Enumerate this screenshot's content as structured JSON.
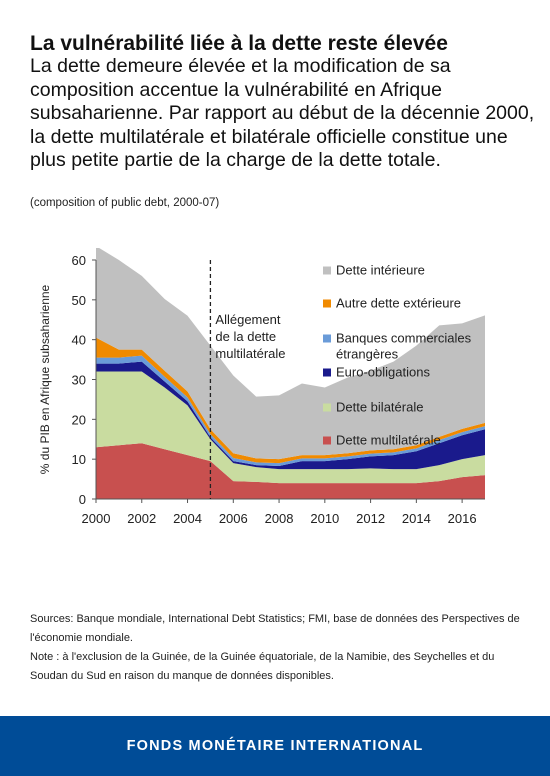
{
  "header": {
    "title": "La vulnérabilité liée à la dette reste élevée",
    "subtitle": "La dette demeure élevée et la modification de sa composition accentue la vulnérabilité en Afrique subsaharienne. Par rapport au début de la décennie 2000, la dette multilatérale et bilatérale officielle constitue une plus petite partie de la charge de la dette totale.",
    "caption": "(composition of public debt, 2000-07)"
  },
  "chart_data": {
    "type": "area",
    "stacked": true,
    "ylabel": "% du PIB en Afrique subsaharienne",
    "xlim": [
      2000,
      2017
    ],
    "ylim": [
      0,
      60
    ],
    "x_ticks": [
      "2000",
      "2002",
      "2004",
      "2006",
      "2008",
      "2010",
      "2012",
      "2014",
      "2016"
    ],
    "y_ticks": [
      "0",
      "10",
      "20",
      "30",
      "40",
      "50",
      "60"
    ],
    "grid": false,
    "legend_position": "right",
    "x": [
      2000,
      2001,
      2002,
      2003,
      2004,
      2005,
      2006,
      2007,
      2008,
      2009,
      2010,
      2011,
      2012,
      2013,
      2014,
      2015,
      2016,
      2017
    ],
    "series": [
      {
        "name": "Dette multilatérale",
        "color": "#c8504f",
        "values": [
          13,
          13.5,
          14,
          12.5,
          11,
          9.5,
          4.5,
          4.3,
          4,
          4,
          4,
          4,
          4,
          4,
          4,
          4.5,
          5.5,
          6
        ]
      },
      {
        "name": "Dette bilatérale",
        "color": "#c9dca0",
        "values": [
          19,
          18.5,
          18,
          15.5,
          12.5,
          5.5,
          4.5,
          3.7,
          3.5,
          3.5,
          3.5,
          3.5,
          3.7,
          3.5,
          3.5,
          4,
          4.5,
          5
        ]
      },
      {
        "name": "Euro-obligations",
        "color": "#1a1a8c",
        "values": [
          2,
          2,
          2.5,
          1.5,
          1,
          0.5,
          0.5,
          0.5,
          0.8,
          2,
          2,
          2.5,
          3,
          3.5,
          4.5,
          5.5,
          6,
          6.5
        ]
      },
      {
        "name": "Banques commerciales étrangères",
        "color": "#6a9bd8",
        "values": [
          1.5,
          1.5,
          1.5,
          1.2,
          1,
          0.8,
          0.8,
          0.7,
          0.7,
          0.7,
          0.7,
          0.7,
          0.7,
          0.7,
          0.7,
          0.8,
          0.8,
          0.8
        ]
      },
      {
        "name": "Autre dette extérieure",
        "color": "#f08a00",
        "values": [
          5,
          2,
          1.5,
          1.5,
          1.5,
          1.2,
          1.2,
          1,
          1,
          0.8,
          0.8,
          0.8,
          0.8,
          0.8,
          0.8,
          0.8,
          0.8,
          0.8
        ]
      },
      {
        "name": "Dette intérieure",
        "color": "#c0c0c0",
        "values": [
          23,
          22.5,
          18.5,
          18,
          19,
          21,
          19.5,
          15.5,
          16,
          18,
          17,
          19,
          20,
          22,
          25,
          28,
          26.5,
          27
        ]
      }
    ],
    "annotation": {
      "text": [
        "Allégement",
        "de la dette",
        "multilatérale"
      ],
      "x": 2005
    }
  },
  "notes": {
    "sources": "Sources: Banque mondiale, International Debt Statistics; FMI, base de données des Perspectives de l'économie mondiale.",
    "note": "Note : à l'exclusion de la Guinée,  de la  Guinée équatoriale,  de la Namibie, des Seychelles et du Soudan du Sud en raison du manque de données disponibles."
  },
  "footer": {
    "label": "FONDS MONÉTAIRE INTERNATIONAL"
  }
}
